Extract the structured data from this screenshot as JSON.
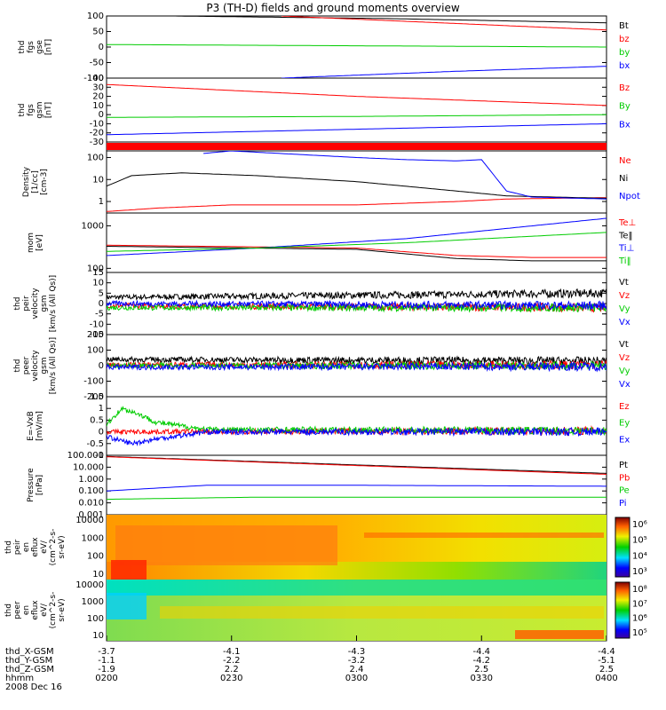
{
  "title": "P3 (TH-D) fields and ground moments overview",
  "chart_data": [
    {
      "type": "line",
      "ylabel": [
        "thd",
        "fgs",
        "gse",
        "[nT]"
      ],
      "ylim": [
        -100,
        100
      ],
      "yticks": [
        100,
        50,
        0,
        -50,
        -100
      ],
      "series": [
        {
          "name": "Bt",
          "color": "#000000",
          "x": [
            0.13,
            0.55,
            1.0
          ],
          "values": [
            100,
            92,
            78
          ]
        },
        {
          "name": "bz",
          "color": "#ff0000",
          "x": [
            0.35,
            1.0
          ],
          "values": [
            100,
            55
          ]
        },
        {
          "name": "by",
          "color": "#00cc00",
          "x": [
            0.0,
            1.0
          ],
          "values": [
            8,
            0
          ]
        },
        {
          "name": "bx",
          "color": "#0000ff",
          "x": [
            0.35,
            0.7,
            1.0
          ],
          "values": [
            -100,
            -78,
            -62
          ]
        }
      ]
    },
    {
      "type": "line",
      "ylabel": [
        "thd",
        "fgs",
        "gsm",
        "[nT]"
      ],
      "ylim": [
        -30,
        40
      ],
      "yticks": [
        40,
        30,
        20,
        10,
        0,
        -10,
        -20,
        -30
      ],
      "series": [
        {
          "name": "Bz",
          "color": "#ff0000",
          "x": [
            0.0,
            0.5,
            1.0
          ],
          "values": [
            33,
            20,
            10
          ]
        },
        {
          "name": "By",
          "color": "#00cc00",
          "x": [
            0.0,
            0.5,
            1.0
          ],
          "values": [
            -3,
            -2,
            0
          ]
        },
        {
          "name": "Bx",
          "color": "#0000ff",
          "x": [
            0.0,
            0.5,
            1.0
          ],
          "values": [
            -22,
            -16,
            -10
          ]
        }
      ]
    },
    {
      "type": "line",
      "ylabel": [
        "Density",
        "[1/cc]",
        "[cm-3]"
      ],
      "yscale": "log",
      "ylim": [
        0.3,
        200
      ],
      "yticks": [
        100,
        10,
        1
      ],
      "series": [
        {
          "name": "Ne",
          "color": "#ff0000",
          "x": [
            0.0,
            0.1,
            0.25,
            0.5,
            0.7,
            0.8,
            1.0
          ],
          "values": [
            0.35,
            0.5,
            0.7,
            0.7,
            1.0,
            1.3,
            1.5
          ]
        },
        {
          "name": "Ni",
          "color": "#000000",
          "x": [
            0.0,
            0.05,
            0.15,
            0.3,
            0.5,
            0.7,
            0.8,
            1.0
          ],
          "values": [
            5,
            15,
            20,
            15,
            8,
            3,
            1.8,
            1.4
          ]
        },
        {
          "name": "Npot",
          "color": "#0000ff",
          "x": [
            0.19,
            0.25,
            0.5,
            0.6,
            0.7,
            0.75,
            0.8,
            0.85,
            1.0
          ],
          "values": [
            150,
            200,
            100,
            80,
            70,
            80,
            3,
            1.6,
            1.3
          ]
        }
      ]
    },
    {
      "type": "line",
      "ylabel": [
        "mom",
        "[eV]"
      ],
      "yscale": "log",
      "ylim": [
        80,
        2000
      ],
      "yticks": [
        1000,
        100
      ],
      "series": [
        {
          "name": "Te⊥",
          "color": "#ff0000",
          "x": [
            0.0,
            0.5,
            0.7,
            0.85,
            1.0
          ],
          "values": [
            350,
            300,
            200,
            180,
            180
          ]
        },
        {
          "name": "Te‖",
          "color": "#000000",
          "x": [
            0.0,
            0.5,
            0.7,
            0.85,
            1.0
          ],
          "values": [
            330,
            280,
            170,
            150,
            150
          ]
        },
        {
          "name": "Ti⊥",
          "color": "#0000ff",
          "x": [
            0.0,
            0.3,
            0.6,
            1.0
          ],
          "values": [
            200,
            300,
            500,
            1500
          ]
        },
        {
          "name": "Ti‖",
          "color": "#00cc00",
          "x": [
            0.0,
            0.3,
            0.6,
            1.0
          ],
          "values": [
            250,
            300,
            400,
            700
          ]
        }
      ]
    },
    {
      "type": "line",
      "ylabel": [
        "thd",
        "peir",
        "velocity",
        "gsm",
        "[km/s (All Qs)]"
      ],
      "ylim": [
        -15,
        15
      ],
      "yticks": [
        15,
        10,
        5,
        0,
        -5,
        -10,
        -15
      ],
      "series": [
        {
          "name": "Vt",
          "color": "#000000",
          "x": [
            0.0,
            1.0
          ],
          "values": [
            3,
            5
          ]
        },
        {
          "name": "Vz",
          "color": "#ff0000",
          "x": [
            0.0,
            1.0
          ],
          "values": [
            -1,
            -2
          ]
        },
        {
          "name": "Vy",
          "color": "#00cc00",
          "x": [
            0.0,
            1.0
          ],
          "values": [
            -2,
            -2
          ]
        },
        {
          "name": "Vx",
          "color": "#0000ff",
          "x": [
            0.0,
            1.0
          ],
          "values": [
            0,
            -1
          ]
        }
      ]
    },
    {
      "type": "line",
      "ylabel": [
        "thd",
        "peer",
        "velocity",
        "gsm",
        "[km/s (All Qs)]"
      ],
      "ylim": [
        -200,
        200
      ],
      "yticks": [
        200,
        100,
        0,
        -100,
        -200
      ],
      "series": [
        {
          "name": "Vt",
          "color": "#000000",
          "x": [
            0.0,
            1.0
          ],
          "values": [
            40,
            30
          ]
        },
        {
          "name": "Vz",
          "color": "#ff0000",
          "x": [
            0.0,
            1.0
          ],
          "values": [
            5,
            5
          ]
        },
        {
          "name": "Vy",
          "color": "#00cc00",
          "x": [
            0.0,
            1.0
          ],
          "values": [
            0,
            0
          ]
        },
        {
          "name": "Vx",
          "color": "#0000ff",
          "x": [
            0.0,
            1.0
          ],
          "values": [
            -10,
            -5
          ]
        }
      ]
    },
    {
      "type": "line",
      "ylabel": [
        "E=-VxB",
        "[mV/m]"
      ],
      "ylim": [
        -1.0,
        1.5
      ],
      "yticks": [
        1.5,
        1.0,
        0.5,
        0.0,
        -0.5,
        -1.0
      ],
      "series": [
        {
          "name": "Ez",
          "color": "#ff0000",
          "x": [
            0.0,
            1.0
          ],
          "values": [
            0.0,
            0.05
          ]
        },
        {
          "name": "Ey",
          "color": "#00cc00",
          "x": [
            0.0,
            0.03,
            0.06,
            0.1,
            0.2,
            1.0
          ],
          "values": [
            0.3,
            1.0,
            0.8,
            0.4,
            0.1,
            0.05
          ]
        },
        {
          "name": "Ex",
          "color": "#0000ff",
          "x": [
            0.0,
            0.05,
            0.1,
            0.2,
            1.0
          ],
          "values": [
            -0.2,
            -0.5,
            -0.3,
            0.0,
            0.0
          ]
        }
      ]
    },
    {
      "type": "line",
      "ylabel": [
        "Pressure",
        "[nPa]"
      ],
      "yscale": "log",
      "ylim": [
        0.001,
        100
      ],
      "yticks": [
        100,
        10,
        1,
        0.1,
        0.01,
        0.001
      ],
      "ytick_labels": [
        "100.000",
        "10.000",
        "1.000",
        "0.100",
        "0.010",
        "0.001"
      ],
      "series": [
        {
          "name": "Pt",
          "color": "#000000",
          "x": [
            0.0,
            1.0
          ],
          "values": [
            80,
            3
          ]
        },
        {
          "name": "Pb",
          "color": "#ff0000",
          "x": [
            0.0,
            1.0
          ],
          "values": [
            75,
            2.5
          ]
        },
        {
          "name": "Pe",
          "color": "#00cc00",
          "x": [
            0.0,
            0.3,
            1.0
          ],
          "values": [
            0.02,
            0.03,
            0.03
          ]
        },
        {
          "name": "Pi",
          "color": "#0000ff",
          "x": [
            0.0,
            0.2,
            0.5,
            1.0
          ],
          "values": [
            0.1,
            0.3,
            0.3,
            0.25
          ]
        }
      ]
    },
    {
      "type": "heatmap",
      "ylabel": [
        "thd",
        "peir",
        "en",
        "eflux",
        "eV/",
        "(cm^2-s-",
        "sr-eV)"
      ],
      "yscale": "log",
      "ylim": [
        5,
        20000
      ],
      "yticks": [
        10000,
        1000,
        100,
        10
      ],
      "ytick_labels": [
        "10000",
        "1000",
        "100",
        "10"
      ],
      "colorbar_ticks": [
        "10⁶",
        "10⁵",
        "10⁴",
        "10³"
      ]
    },
    {
      "type": "heatmap",
      "ylabel": [
        "thd",
        "peer",
        "en",
        "eflux",
        "eV/",
        "(cm^2-s-",
        "sr-eV)"
      ],
      "yscale": "log",
      "ylim": [
        5,
        20000
      ],
      "yticks": [
        10000,
        1000,
        100,
        10
      ],
      "ytick_labels": [
        "10000",
        "1000",
        "100",
        "10"
      ],
      "colorbar_ticks": [
        "10⁸",
        "10⁷",
        "10⁶",
        "10⁵"
      ]
    }
  ],
  "xaxis": {
    "row_labels": [
      "thd_X-GSM",
      "thd_Y-GSM",
      "thd_Z-GSM",
      "hhmm",
      "2008 Dec 16"
    ],
    "ticks": [
      {
        "x": 0.0,
        "values": [
          "-3.7",
          "-1.1",
          "-1.9",
          "0200"
        ]
      },
      {
        "x": 0.25,
        "values": [
          "-4.1",
          "-2.2",
          "2.2",
          "0230"
        ]
      },
      {
        "x": 0.5,
        "values": [
          "-4.3",
          "-3.2",
          "2.4",
          "0300"
        ]
      },
      {
        "x": 0.75,
        "values": [
          "-4.4",
          "-4.2",
          "2.5",
          "0330"
        ]
      },
      {
        "x": 1.0,
        "values": [
          "-4.4",
          "-5.1",
          "2.5",
          "0400"
        ]
      }
    ]
  }
}
